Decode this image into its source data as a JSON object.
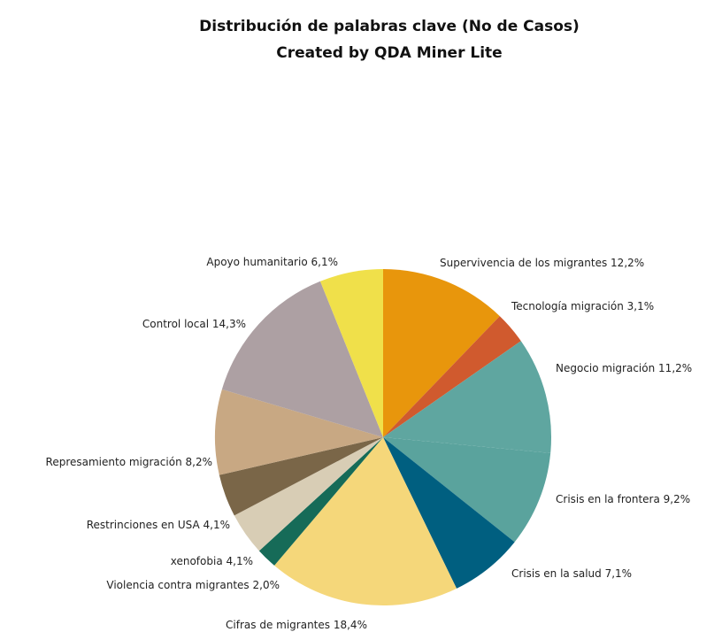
{
  "chart_data": {
    "type": "pie",
    "title": "Distribución de palabras clave (No de Casos)",
    "subtitle": "Created by QDA Miner Lite",
    "categories": [
      "Supervivencia de los migrantes",
      "Tecnología migración",
      "Negocio migración",
      "Crisis en la frontera",
      "Crisis en la salud",
      "Cifras de migrantes",
      "Violencia contra migrantes",
      "xenofobia",
      "Restrinciones en USA",
      "Represamiento migración",
      "Control local",
      "Apoyo humanitario"
    ],
    "values": [
      12.2,
      3.1,
      11.2,
      9.2,
      7.1,
      18.4,
      2.0,
      4.1,
      4.1,
      8.2,
      14.3,
      6.1
    ],
    "value_labels": [
      "12,2%",
      "3,1%",
      "11,2%",
      "9,2%",
      "7,1%",
      "18,4%",
      "2,0%",
      "4,1%",
      "4,1%",
      "8,2%",
      "14,3%",
      "6,1%"
    ],
    "colors": [
      "#e8960c",
      "#d05a2e",
      "#5fa6a0",
      "#5aa39d",
      "#005f80",
      "#f5d77a",
      "#166b58",
      "#d8cdb5",
      "#7a6648",
      "#c8a883",
      "#ada0a3",
      "#f0e04a"
    ]
  }
}
